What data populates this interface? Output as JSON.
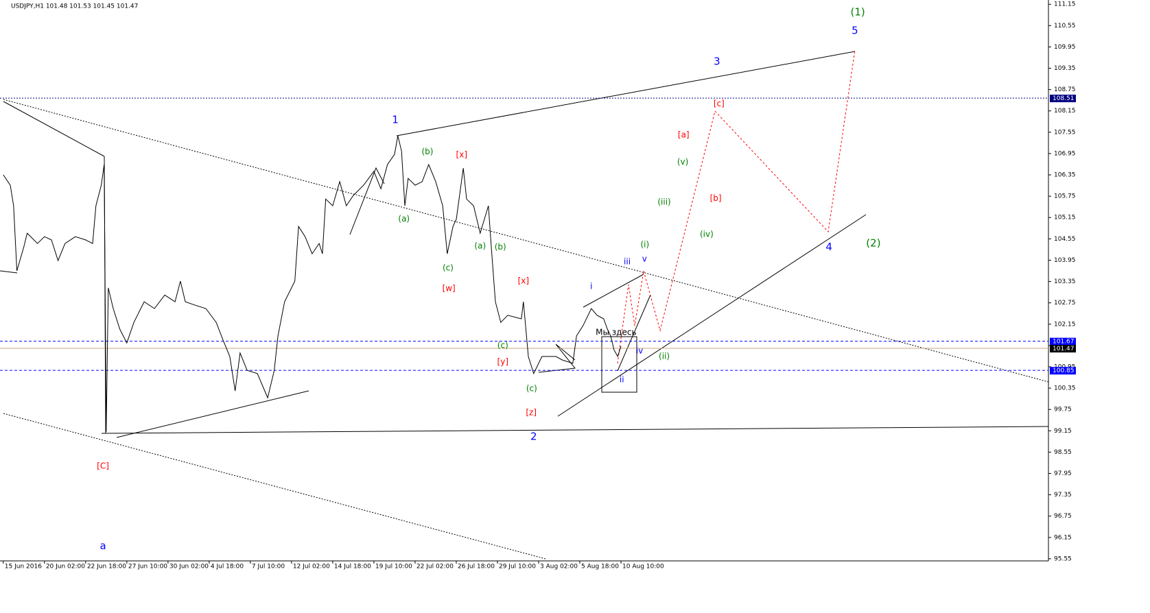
{
  "chart_data": {
    "type": "line",
    "title": "USDJPY,H1  101.48 101.53 101.45 101.47",
    "series": [
      {
        "color": "#000000",
        "x": [
          0.0,
          0.17,
          0.25,
          0.33,
          0.5,
          0.58,
          0.83,
          1.0,
          1.17,
          1.33,
          1.5,
          1.75,
          2.0,
          2.17,
          2.25,
          2.38,
          2.45,
          2.5,
          2.55,
          2.67,
          2.83,
          3.0,
          3.17,
          3.42,
          3.67,
          3.92,
          4.17,
          4.3,
          4.42,
          4.67,
          4.92,
          5.17,
          5.33,
          5.5,
          5.63,
          5.75,
          5.92,
          6.17,
          6.42,
          6.58,
          6.67,
          6.83,
          7.08,
          7.17,
          7.33,
          7.5,
          7.67,
          7.75,
          7.83,
          8.0,
          8.17,
          8.33,
          8.5,
          8.75,
          9.0,
          9.17,
          9.33,
          9.5,
          9.58,
          9.67,
          9.75,
          9.83,
          10.0,
          10.17,
          10.33,
          10.5,
          10.67,
          10.78,
          10.92,
          11.0,
          11.17,
          11.25,
          11.42,
          11.58,
          11.78,
          11.85,
          11.95,
          12.08,
          12.25,
          12.58,
          12.63,
          12.75,
          12.88,
          13.08,
          13.42,
          13.58,
          13.83,
          13.92,
          14.08,
          14.28,
          14.42,
          14.58,
          14.67,
          14.75,
          14.83,
          14.92,
          15.0
        ],
        "values": [
          106.35,
          106.06,
          105.48,
          103.65,
          104.33,
          104.71,
          104.42,
          104.61,
          104.52,
          103.94,
          104.42,
          104.61,
          104.52,
          104.42,
          105.48,
          106.06,
          106.64,
          99.12,
          103.17,
          102.59,
          102.01,
          101.62,
          102.2,
          102.78,
          102.59,
          102.97,
          102.78,
          103.36,
          102.78,
          102.68,
          102.59,
          102.2,
          101.72,
          101.24,
          100.27,
          101.34,
          100.85,
          100.76,
          100.08,
          100.85,
          101.82,
          102.78,
          103.36,
          104.9,
          104.61,
          104.13,
          104.42,
          104.13,
          105.67,
          105.48,
          106.16,
          105.48,
          105.77,
          106.06,
          106.45,
          105.96,
          106.64,
          106.93,
          107.45,
          107.02,
          105.48,
          106.25,
          106.06,
          106.16,
          106.64,
          106.16,
          105.48,
          104.13,
          104.9,
          105.1,
          106.54,
          105.67,
          105.48,
          104.71,
          105.48,
          104.32,
          102.78,
          102.2,
          102.4,
          102.3,
          102.78,
          101.24,
          100.76,
          101.24,
          101.24,
          101.14,
          101.05,
          101.82,
          102.11,
          102.59,
          102.4,
          102.3,
          102.01,
          101.82,
          101.43,
          101.24,
          101.53
        ]
      }
    ],
    "xlim": [
      -0.08,
      25.38
    ],
    "ylim": [
      95.49,
      111.27
    ],
    "xticks": [
      {
        "value": 0,
        "label": "15 Jun 2016"
      },
      {
        "value": 1,
        "label": "20 Jun 02:00"
      },
      {
        "value": 2,
        "label": "22 Jun 18:00"
      },
      {
        "value": 3,
        "label": "27 Jun 10:00"
      },
      {
        "value": 4,
        "label": "30 Jun 02:00"
      },
      {
        "value": 5,
        "label": "4 Jul 18:00"
      },
      {
        "value": 6,
        "label": "7 Jul 10:00"
      },
      {
        "value": 7,
        "label": "12 Jul 02:00"
      },
      {
        "value": 8,
        "label": "14 Jul 18:00"
      },
      {
        "value": 9,
        "label": "19 Jul 10:00"
      },
      {
        "value": 10,
        "label": "22 Jul 02:00"
      },
      {
        "value": 11,
        "label": "26 Jul 18:00"
      },
      {
        "value": 12,
        "label": "29 Jul 10:00"
      },
      {
        "value": 13,
        "label": "3 Aug 02:00"
      },
      {
        "value": 14,
        "label": "5 Aug 18:00"
      },
      {
        "value": 15,
        "label": "10 Aug 10:00"
      }
    ],
    "yticks": [
      111.15,
      110.55,
      109.95,
      109.35,
      108.75,
      108.15,
      107.55,
      106.95,
      106.35,
      105.75,
      105.15,
      104.55,
      103.95,
      103.35,
      102.75,
      102.15,
      101.55,
      100.95,
      100.35,
      99.75,
      99.15,
      98.55,
      97.95,
      97.35,
      96.75,
      96.15,
      95.55
    ],
    "hlines": [
      {
        "value": 108.51,
        "color": "#000080",
        "style": "dotted"
      },
      {
        "value": 101.67,
        "color": "#0000ff",
        "style": "dashed"
      },
      {
        "value": 100.85,
        "color": "#0000ff",
        "style": "dashed"
      },
      {
        "value": 101.47,
        "color": "#000000",
        "style": "solid"
      }
    ],
    "annotations": [
      {
        "text": "1",
        "x": 9.52,
        "y": 107.89,
        "color": "#0000ff"
      },
      {
        "text": "2",
        "x": 12.88,
        "y": 98.98,
        "color": "#0000ff"
      },
      {
        "text": "3",
        "x": 17.33,
        "y": 109.53,
        "color": "#0000ff"
      },
      {
        "text": "4",
        "x": 20.05,
        "y": 104.32,
        "color": "#0000ff"
      },
      {
        "text": "5",
        "x": 20.68,
        "y": 110.4,
        "color": "#0000ff"
      },
      {
        "text": "(1)",
        "x": 20.75,
        "y": 110.92,
        "color": "#008000"
      },
      {
        "text": "(2)",
        "x": 21.13,
        "y": 104.42,
        "color": "#008000"
      },
      {
        "text": "a",
        "x": 2.42,
        "y": 95.9,
        "color": "#0000ff"
      },
      {
        "text": "[C]",
        "x": 2.42,
        "y": 98.15,
        "color": "#ff0000"
      },
      {
        "text": "(b)",
        "x": 10.3,
        "y": 107.0,
        "color": "#008000"
      },
      {
        "text": "(a)",
        "x": 9.73,
        "y": 105.11,
        "color": "#008000"
      },
      {
        "text": "(c)",
        "x": 10.8,
        "y": 103.73,
        "color": "#008000"
      },
      {
        "text": "(a)",
        "x": 11.58,
        "y": 104.34,
        "color": "#008000"
      },
      {
        "text": "(b)",
        "x": 12.07,
        "y": 104.32,
        "color": "#008000"
      },
      {
        "text": "(c)",
        "x": 12.13,
        "y": 101.55,
        "color": "#008000"
      },
      {
        "text": "(c)",
        "x": 12.83,
        "y": 100.33,
        "color": "#008000"
      },
      {
        "text": "[x]",
        "x": 11.13,
        "y": 106.91,
        "color": "#ff0000"
      },
      {
        "text": "[w]",
        "x": 10.82,
        "y": 103.15,
        "color": "#ff0000"
      },
      {
        "text": "[x]",
        "x": 12.63,
        "y": 103.36,
        "color": "#ff0000"
      },
      {
        "text": "[y]",
        "x": 12.13,
        "y": 101.08,
        "color": "#ff0000"
      },
      {
        "text": "[z]",
        "x": 12.82,
        "y": 99.66,
        "color": "#ff0000"
      },
      {
        "text": "i",
        "x": 14.28,
        "y": 103.21,
        "color": "#0000ff"
      },
      {
        "text": "ii",
        "x": 15.02,
        "y": 100.58,
        "color": "#0000ff"
      },
      {
        "text": "iii",
        "x": 15.15,
        "y": 103.9,
        "color": "#0000ff"
      },
      {
        "text": "iv",
        "x": 15.45,
        "y": 101.39,
        "color": "#0000ff"
      },
      {
        "text": "v",
        "x": 15.57,
        "y": 103.98,
        "color": "#0000ff"
      },
      {
        "text": "(i)",
        "x": 15.58,
        "y": 104.38,
        "color": "#008000"
      },
      {
        "text": "(ii)",
        "x": 16.05,
        "y": 101.24,
        "color": "#008000"
      },
      {
        "text": "(iii)",
        "x": 16.05,
        "y": 105.58,
        "color": "#008000"
      },
      {
        "text": "(iv)",
        "x": 17.08,
        "y": 104.67,
        "color": "#008000"
      },
      {
        "text": "(v)",
        "x": 16.5,
        "y": 106.71,
        "color": "#008000"
      },
      {
        "text": "[a]",
        "x": 16.52,
        "y": 107.47,
        "color": "#ff0000"
      },
      {
        "text": "[b]",
        "x": 17.3,
        "y": 105.69,
        "color": "#ff0000"
      },
      {
        "text": "[c]",
        "x": 17.38,
        "y": 108.35,
        "color": "#ff0000"
      },
      {
        "text": "Мы здесь",
        "x": 14.88,
        "y": 101.91,
        "color": "#000000"
      }
    ]
  }
}
